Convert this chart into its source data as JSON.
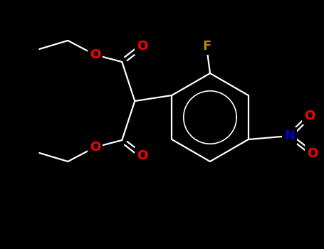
{
  "background_color": "#000000",
  "bond_color": "#ffffff",
  "bond_lw": 1.6,
  "atom_colors": {
    "O": "#ff0000",
    "F": "#b8860b",
    "N": "#0000cd",
    "C": "#ffffff"
  },
  "figsize": [
    4.55,
    3.5
  ],
  "dpi": 100,
  "xlim": [
    0,
    455
  ],
  "ylim": [
    0,
    350
  ]
}
